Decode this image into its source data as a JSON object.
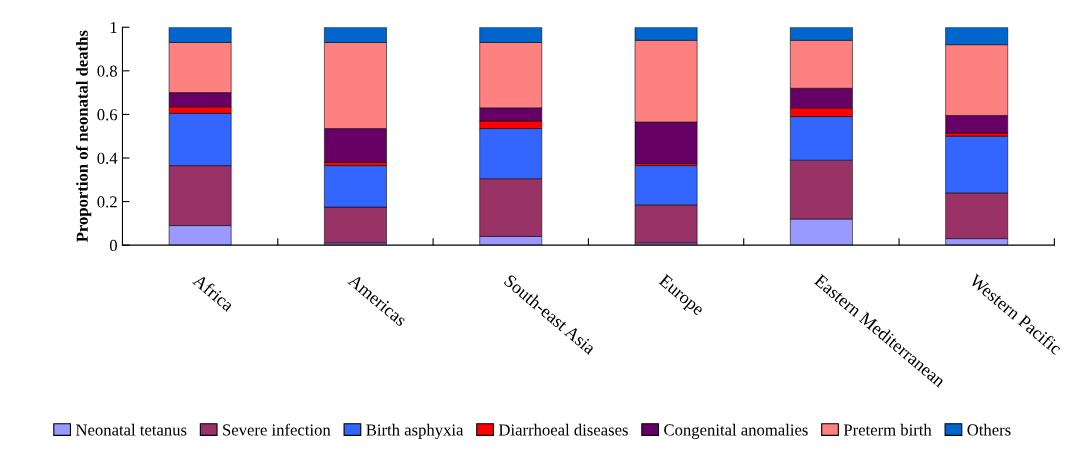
{
  "chart_data": {
    "type": "bar",
    "stacked": true,
    "ylabel": "Proportion of neonatal deaths",
    "categories": [
      "Africa",
      "Americas",
      "South-east Asia",
      "Europe",
      "Eastern Mediterranean",
      "Western Pacific"
    ],
    "series": [
      {
        "name": "Neonatal tetanus",
        "color": "#9999ff",
        "values": [
          0.09,
          0.01,
          0.04,
          0.01,
          0.12,
          0.03
        ]
      },
      {
        "name": "Severe infection",
        "color": "#993366",
        "values": [
          0.275,
          0.165,
          0.265,
          0.175,
          0.27,
          0.21
        ]
      },
      {
        "name": "Birth asphyxia",
        "color": "#3366ff",
        "values": [
          0.24,
          0.19,
          0.23,
          0.18,
          0.2,
          0.26
        ]
      },
      {
        "name": "Diarrhoeal diseases",
        "color": "#ff0000",
        "values": [
          0.03,
          0.015,
          0.035,
          0.01,
          0.04,
          0.015
        ]
      },
      {
        "name": "Congenital anomalies",
        "color": "#660066",
        "values": [
          0.065,
          0.155,
          0.06,
          0.19,
          0.09,
          0.08
        ]
      },
      {
        "name": "Preterm birth",
        "color": "#ff8080",
        "values": [
          0.23,
          0.395,
          0.3,
          0.375,
          0.22,
          0.325
        ]
      },
      {
        "name": "Others",
        "color": "#0066cc",
        "values": [
          0.07,
          0.07,
          0.07,
          0.06,
          0.06,
          0.08
        ]
      }
    ],
    "ylim": [
      0,
      1
    ],
    "yticks": [
      0,
      {
        "value": 0.2,
        "label": "0.2"
      },
      {
        "value": 0.4,
        "label": "0.4"
      },
      {
        "value": 0.6,
        "label": "0.6"
      },
      {
        "value": 0.8,
        "label": "0.8"
      },
      1
    ],
    "grid": false,
    "legend": "bottom"
  }
}
